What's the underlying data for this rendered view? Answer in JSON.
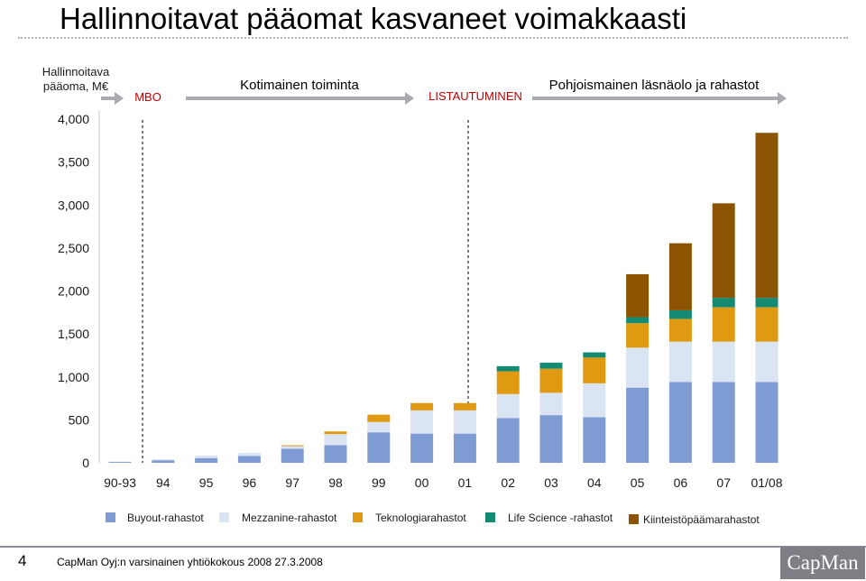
{
  "slide": {
    "title": "Hallinnoitavat pääomat kasvaneet voimakkaasti",
    "page_number": "4",
    "footer_text": "CapMan Oyj:n varsinainen yhtiökokous 2008   27.3.2008",
    "logo_text": "CapMan"
  },
  "chart_data": {
    "type": "bar",
    "stacked": true,
    "ylabel": "Hallinnoitava pääoma, M€",
    "ylim": [
      0,
      4000
    ],
    "yticks": [
      "0",
      "500",
      "1,000",
      "1,500",
      "2,000",
      "2,500",
      "3,000",
      "3,500",
      "4,000"
    ],
    "grid": false,
    "legend_position": "bottom",
    "categories": [
      "90-93",
      "94",
      "95",
      "96",
      "97",
      "98",
      "99",
      "00",
      "01",
      "02",
      "03",
      "04",
      "05",
      "06",
      "07",
      "01/08"
    ],
    "series": [
      {
        "name": "Buyout-rahastot",
        "color": "#7f9bd3",
        "values": [
          10,
          30,
          55,
          80,
          165,
          205,
          355,
          340,
          340,
          520,
          555,
          530,
          875,
          940,
          940,
          940
        ]
      },
      {
        "name": "Mezzanine-rahastot",
        "color": "#dbe4f3",
        "values": [
          5,
          10,
          30,
          35,
          30,
          130,
          120,
          270,
          270,
          280,
          260,
          395,
          465,
          470,
          470,
          470
        ]
      },
      {
        "name": "Teknologiarahastot",
        "color": "#e09a12",
        "values": [
          0,
          0,
          0,
          0,
          10,
          30,
          85,
          85,
          85,
          265,
          280,
          300,
          285,
          265,
          400,
          400
        ]
      },
      {
        "name": "Life Science -rahastot",
        "color": "#138a72",
        "values": [
          0,
          0,
          0,
          0,
          0,
          0,
          0,
          0,
          0,
          60,
          70,
          60,
          70,
          100,
          110,
          110
        ]
      },
      {
        "name": "Kiinteistöpäämarahastot",
        "color": "#8c5400",
        "values": [
          0,
          0,
          0,
          0,
          0,
          0,
          0,
          0,
          0,
          0,
          0,
          0,
          500,
          780,
          1100,
          1920
        ]
      }
    ],
    "phases": [
      {
        "label": "MBO",
        "color": "#c00000",
        "bold": false
      },
      {
        "label": "Kotimainen toiminta",
        "color": "#000000",
        "bold": false
      },
      {
        "label": "LISTAUTUMINEN",
        "color": "#c00000",
        "bold": false
      },
      {
        "label": "Pohjoismainen läsnäolo ja rahastot",
        "color": "#000000",
        "bold": false
      }
    ]
  }
}
